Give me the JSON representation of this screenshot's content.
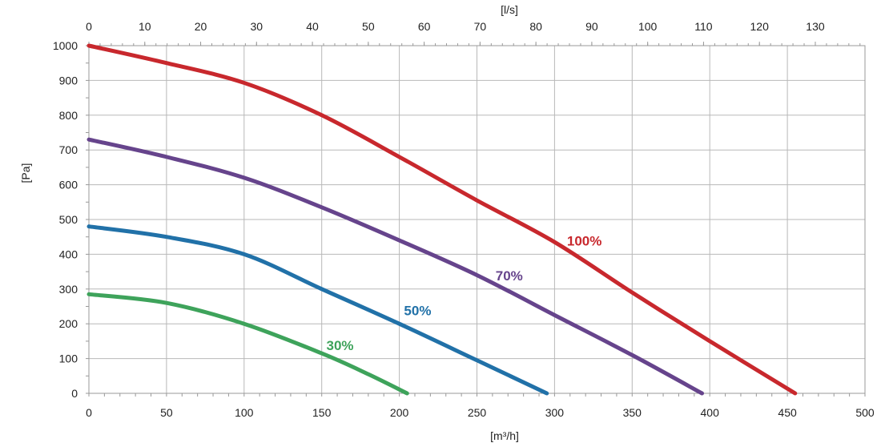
{
  "chart_data": {
    "type": "line",
    "xlabel": "[m³/h]",
    "ylabel": "[Pa]",
    "x2label": "[l/s]",
    "xlim": [
      0,
      500
    ],
    "ylim": [
      0,
      1000
    ],
    "x2lim": [
      0,
      138.89
    ],
    "x_ticks": [
      0,
      50,
      100,
      150,
      200,
      250,
      300,
      350,
      400,
      450,
      500
    ],
    "y_ticks": [
      0,
      100,
      200,
      300,
      400,
      500,
      600,
      700,
      800,
      900,
      1000
    ],
    "x2_ticks": [
      0,
      10,
      20,
      30,
      40,
      50,
      60,
      70,
      80,
      90,
      100,
      110,
      120,
      130
    ],
    "grid": true,
    "legend": "none",
    "series": [
      {
        "name": "100%",
        "color": "#c8282d",
        "label_at": [
          308,
          425
        ],
        "points": [
          [
            0,
            1000
          ],
          [
            50,
            950
          ],
          [
            100,
            893
          ],
          [
            150,
            800
          ],
          [
            200,
            680
          ],
          [
            250,
            555
          ],
          [
            300,
            435
          ],
          [
            350,
            290
          ],
          [
            400,
            150
          ],
          [
            455,
            0
          ]
        ]
      },
      {
        "name": "70%",
        "color": "#66448c",
        "label_at": [
          262,
          325
        ],
        "points": [
          [
            0,
            730
          ],
          [
            50,
            680
          ],
          [
            100,
            620
          ],
          [
            150,
            535
          ],
          [
            200,
            440
          ],
          [
            250,
            340
          ],
          [
            300,
            225
          ],
          [
            350,
            110
          ],
          [
            395,
            0
          ]
        ]
      },
      {
        "name": "50%",
        "color": "#2171a8",
        "label_at": [
          203,
          225
        ],
        "points": [
          [
            0,
            480
          ],
          [
            50,
            450
          ],
          [
            100,
            400
          ],
          [
            150,
            300
          ],
          [
            200,
            200
          ],
          [
            250,
            95
          ],
          [
            295,
            0
          ]
        ]
      },
      {
        "name": "30%",
        "color": "#3ea35b",
        "label_at": [
          153,
          125
        ],
        "points": [
          [
            0,
            285
          ],
          [
            50,
            260
          ],
          [
            100,
            200
          ],
          [
            150,
            115
          ],
          [
            180,
            55
          ],
          [
            205,
            0
          ]
        ]
      }
    ]
  }
}
